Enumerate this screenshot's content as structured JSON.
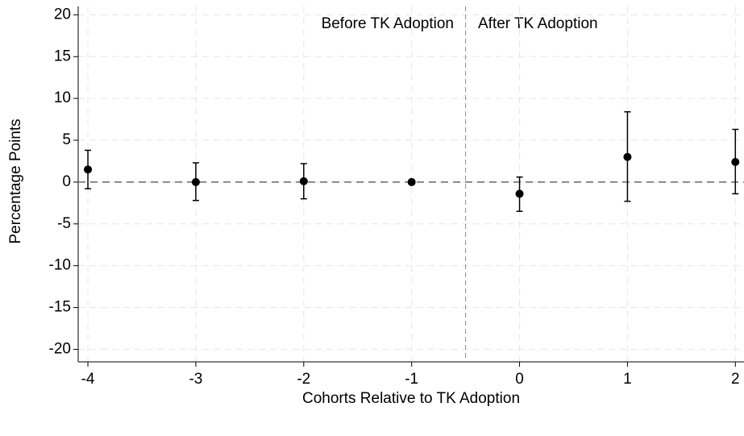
{
  "chart_data": {
    "type": "errorbar",
    "x_label": "Cohorts Relative to TK Adoption",
    "y_label": "Percentage Points",
    "annotations": [
      "Before TK Adoption",
      "After TK Adoption"
    ],
    "x": [
      -4,
      -3,
      -2,
      -1,
      0,
      1,
      2
    ],
    "values": [
      1.5,
      0.0,
      0.1,
      0.0,
      -1.4,
      3.0,
      2.4
    ],
    "ci_lower": [
      -0.8,
      -2.2,
      -2.0,
      null,
      -3.5,
      -2.3,
      -1.4
    ],
    "ci_upper": [
      3.8,
      2.3,
      2.2,
      null,
      0.6,
      8.4,
      6.3
    ],
    "color": "#000000",
    "xlim": [
      -4.09,
      2.08
    ],
    "ylim": [
      -21.5,
      21
    ],
    "xticks": [
      -4,
      -3,
      -2,
      -1,
      0,
      1,
      2
    ],
    "yticks": [
      -20,
      -15,
      -10,
      -5,
      0,
      5,
      10,
      15,
      20
    ],
    "hline": 0,
    "vline": -0.5,
    "ref_color": "#888888",
    "grid": true
  }
}
